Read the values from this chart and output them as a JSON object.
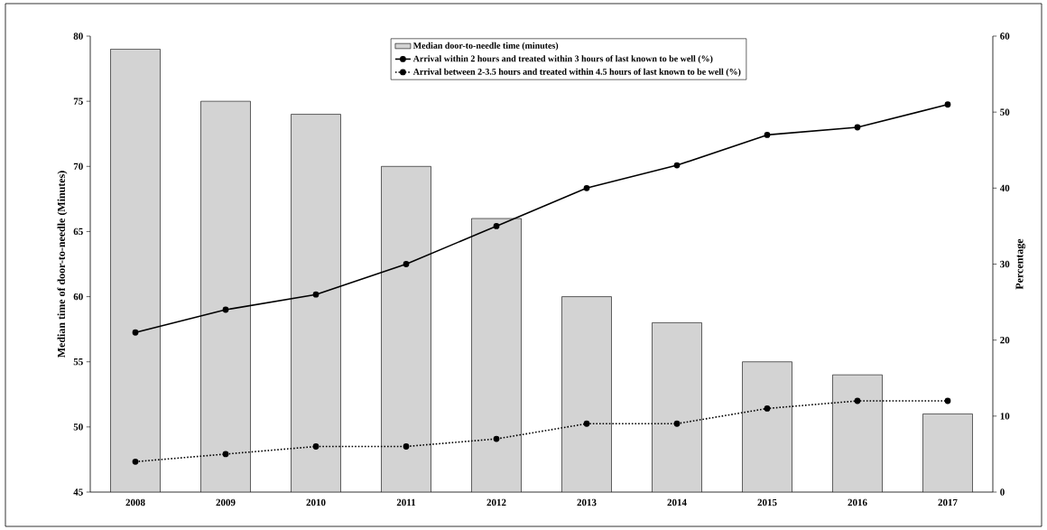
{
  "chart_data": {
    "type": "bar",
    "categories": [
      "2008",
      "2009",
      "2010",
      "2011",
      "2012",
      "2013",
      "2014",
      "2015",
      "2016",
      "2017"
    ],
    "ylabel": "Median time of door-to-needle (Minutes)",
    "y2label": "Percentage",
    "ylim": [
      45,
      80
    ],
    "yticks": [
      45,
      50,
      55,
      60,
      65,
      70,
      75,
      80
    ],
    "y2lim": [
      0,
      60
    ],
    "y2ticks": [
      0,
      10,
      20,
      30,
      40,
      50,
      60
    ],
    "legend": "top",
    "grid": false,
    "marker": "circle",
    "series": [
      {
        "name": "Median door-to-needle time (minutes)",
        "color": "#d3d3d3",
        "values": [
          79,
          75,
          74,
          70,
          66,
          60,
          58,
          55,
          54,
          51
        ]
      },
      {
        "name": "Arrival within 2 hours and treated within 3 hours of last known to be well (%)",
        "type": "line",
        "axis": "y2",
        "color": "#000000",
        "line_style": "solid",
        "values": [
          21,
          24,
          26,
          30,
          35,
          40,
          43,
          47,
          48,
          51
        ]
      },
      {
        "name": "Arrival between 2-3.5 hours and treated within 4.5 hours of last known to be well (%)",
        "type": "line",
        "axis": "y2",
        "color": "#000000",
        "line_style": "dotted",
        "values": [
          4,
          5,
          6,
          6,
          7,
          9,
          9,
          11,
          12,
          12
        ]
      }
    ]
  }
}
